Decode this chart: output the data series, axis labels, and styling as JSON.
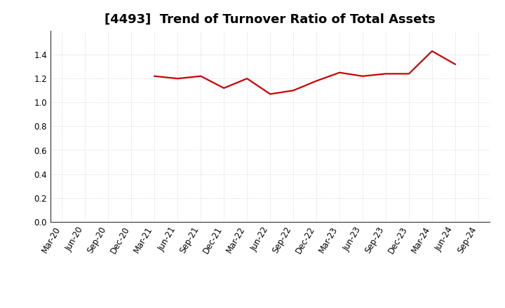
{
  "title": "[4493]  Trend of Turnover Ratio of Total Assets",
  "x_labels": [
    "Mar-20",
    "Jun-20",
    "Sep-20",
    "Dec-20",
    "Mar-21",
    "Jun-21",
    "Sep-21",
    "Dec-21",
    "Mar-22",
    "Jun-22",
    "Sep-22",
    "Dec-22",
    "Mar-23",
    "Jun-23",
    "Sep-23",
    "Dec-23",
    "Mar-24",
    "Jun-24",
    "Sep-24"
  ],
  "y_values": [
    null,
    null,
    null,
    null,
    1.22,
    1.2,
    1.22,
    1.12,
    1.2,
    1.07,
    1.1,
    1.18,
    1.25,
    1.22,
    1.24,
    1.24,
    1.43,
    1.32,
    null
  ],
  "line_color": "#cc0000",
  "line_width": 1.6,
  "ylim": [
    0.0,
    1.6
  ],
  "yticks": [
    0.0,
    0.2,
    0.4,
    0.6,
    0.8,
    1.0,
    1.2,
    1.4
  ],
  "background_color": "#ffffff",
  "grid_color": "#bbbbbb",
  "title_fontsize": 13,
  "tick_fontsize": 8.5
}
